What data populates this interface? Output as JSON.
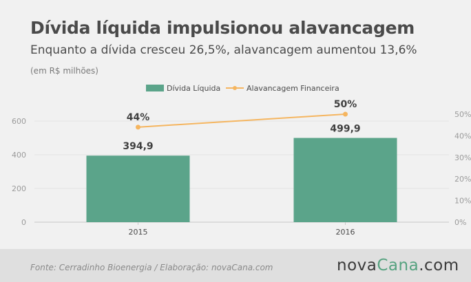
{
  "header": {
    "title": "Dívida líquida impulsionou alavancagem",
    "subtitle": "Enquanto a dívida cresceu 26,5%, alavancagem aumentou 13,6%",
    "unit_note": "(em R$ milhões)"
  },
  "footer": {
    "source": "Fonte: Cerradinho Bioenergia / Elaboração: novaCana.com",
    "logo_prefix": "nova",
    "logo_highlight": "Cana",
    "logo_suffix": ".com"
  },
  "colors": {
    "bar": "#5ba48a",
    "line": "#f5b55f",
    "footer_bg": "#dfdfdf"
  },
  "chart_data": {
    "type": "bar",
    "categories": [
      "2015",
      "2016"
    ],
    "series": [
      {
        "name": "Dívida Líquida",
        "type": "bar",
        "axis": "left",
        "values": [
          394.9,
          499.9
        ],
        "labels": [
          "394,9",
          "499,9"
        ]
      },
      {
        "name": "Alavancagem Financeira",
        "type": "line",
        "axis": "right",
        "values": [
          44,
          50
        ],
        "labels": [
          "44%",
          "50%"
        ]
      }
    ],
    "left_axis": {
      "ylim": [
        0,
        600
      ],
      "ticks": [
        0,
        200,
        400,
        600
      ],
      "tick_labels": [
        "0",
        "200",
        "400",
        "600"
      ]
    },
    "right_axis": {
      "ylim": [
        0,
        50
      ],
      "ticks": [
        0,
        10,
        20,
        30,
        40,
        50
      ],
      "tick_labels": [
        "0%",
        "10%",
        "20%",
        "30%",
        "40%",
        "50%"
      ]
    },
    "legend_position": "top-center",
    "grid": true
  }
}
